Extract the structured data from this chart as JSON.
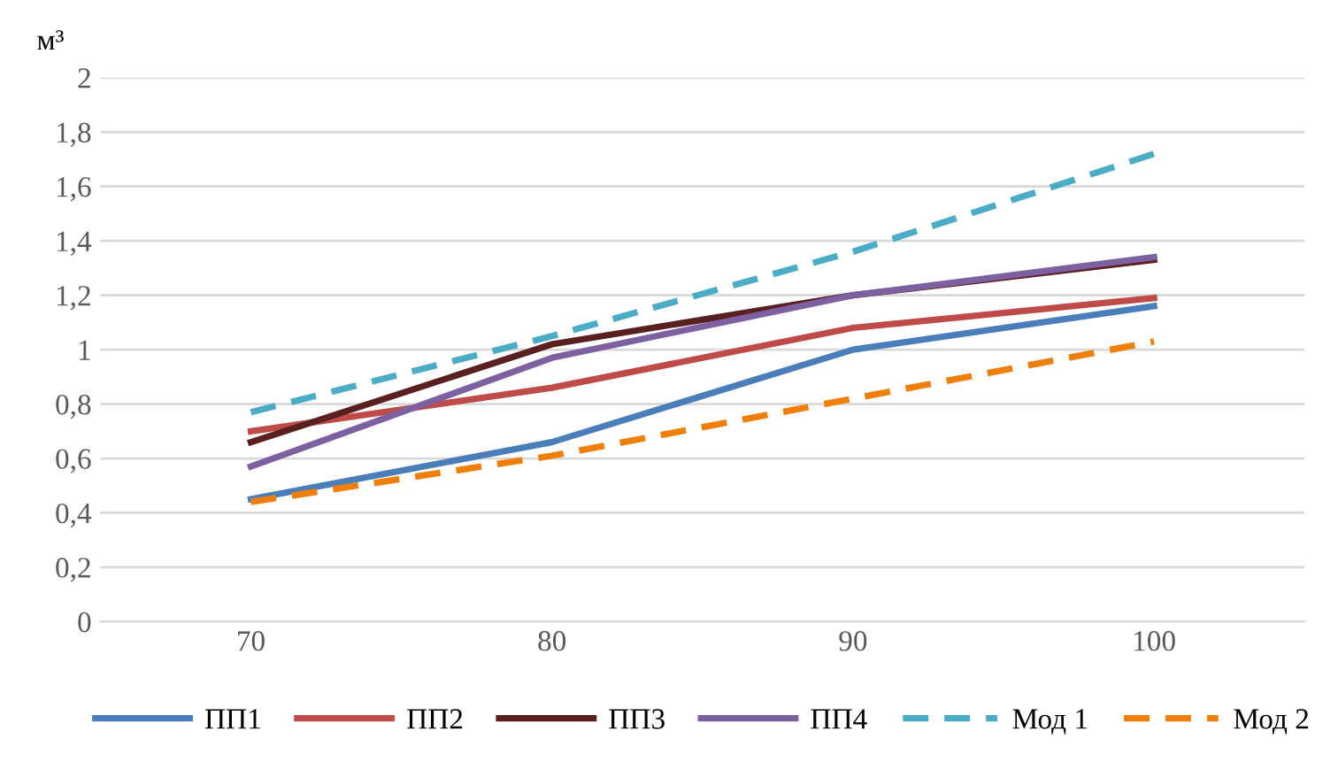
{
  "chart_data": {
    "type": "line",
    "ylabel": "м³",
    "categories": [
      "70",
      "80",
      "90",
      "100"
    ],
    "series": [
      {
        "name": "ПП1",
        "color": "#4a7ebb",
        "values": [
          0.45,
          0.66,
          1.0,
          1.16
        ]
      },
      {
        "name": "ПП2",
        "color": "#be4b48",
        "values": [
          0.7,
          0.86,
          1.08,
          1.19
        ]
      },
      {
        "name": "ПП3",
        "color": "#5a1f1f",
        "values": [
          0.66,
          1.02,
          1.2,
          1.33
        ]
      },
      {
        "name": "ПП4",
        "color": "#7d60a0",
        "values": [
          0.57,
          0.97,
          1.2,
          1.34
        ]
      },
      {
        "name": "Мод 1",
        "color": "#4bacc6",
        "line_style": "dashed",
        "values": [
          0.77,
          1.05,
          1.36,
          1.72
        ]
      },
      {
        "name": "Мод 2",
        "color": "#f07f09",
        "line_style": "dashed",
        "values": [
          0.44,
          0.61,
          0.82,
          1.03
        ]
      }
    ],
    "ylim": [
      0,
      2
    ],
    "yticks": [
      0,
      {
        "value": 0.2,
        "label": "0,2"
      },
      {
        "value": 0.4,
        "label": "0,4"
      },
      {
        "value": 0.6,
        "label": "0,6"
      },
      {
        "value": 0.8,
        "label": "0,8"
      },
      1,
      {
        "value": 1.2,
        "label": "1,2"
      },
      {
        "value": 1.4,
        "label": "1,4"
      },
      {
        "value": 1.6,
        "label": "1,6"
      },
      {
        "value": 1.8,
        "label": "1,8"
      },
      2
    ],
    "grid": "y",
    "legend": "bottom",
    "marker": "none",
    "line_style": "solid"
  }
}
